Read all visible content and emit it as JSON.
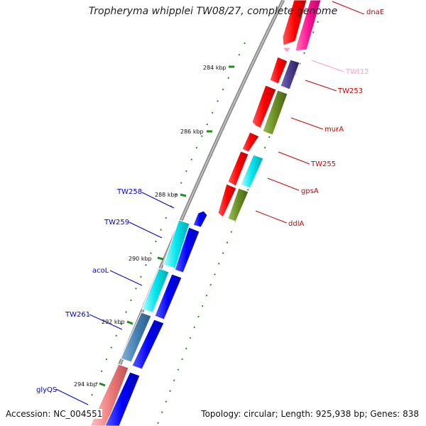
{
  "title": "Tropheryma whipplei TW08/27, complete genome",
  "footer": {
    "accession": "Accession: NC_004551",
    "topology": "Topology: circular; Length: 925,938 bp; Genes: 838"
  },
  "scale_labels": [
    "284 kbp",
    "286 kbp",
    "288 kbp",
    "290 kbp",
    "292 kbp",
    "294 kbp"
  ],
  "genes_right": [
    {
      "name": "dnaE",
      "color": "#cc0000"
    },
    {
      "name": "TWt12",
      "color": "#ff99cc"
    },
    {
      "name": "TW253",
      "color": "#cc0000"
    },
    {
      "name": "murA",
      "color": "#cc0000"
    },
    {
      "name": "TW255",
      "color": "#cc0000"
    },
    {
      "name": "gpsA",
      "color": "#cc0000"
    },
    {
      "name": "ddlA",
      "color": "#cc0000"
    }
  ],
  "genes_left": [
    {
      "name": "TW258",
      "color": "#0000cc"
    },
    {
      "name": "TW259",
      "color": "#0000cc"
    },
    {
      "name": "acoL",
      "color": "#0000cc"
    },
    {
      "name": "TW261",
      "color": "#0000cc"
    },
    {
      "name": "glyQS",
      "color": "#0000cc"
    }
  ],
  "colors": {
    "red": "#ff0000",
    "magenta": "#ff1493",
    "purple": "#4b3c8c",
    "olive": "#6b8e23",
    "cyan": "#00e5ee",
    "blue": "#0000ff",
    "steelblue": "#4682b4",
    "salmon": "#f08080",
    "tick": "#228b22",
    "backbone": "#8c8c8c"
  }
}
